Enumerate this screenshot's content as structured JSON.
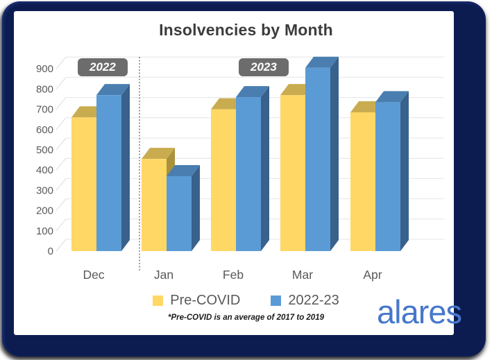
{
  "header": {
    "title": "Insolvencies by Month"
  },
  "year_badges": [
    {
      "label": "2022"
    },
    {
      "label": "2023"
    }
  ],
  "legend": {
    "items": [
      {
        "label": "Pre-COVID",
        "color": "#FFD765"
      },
      {
        "label": "2022-23",
        "color": "#5B9BD5"
      }
    ]
  },
  "footnote": "*Pre-COVID is an average of 2017 to 2019",
  "brand": "alares",
  "colors": {
    "frame_navy": "#0d1c50",
    "badge_gray": "#6c6c6c",
    "title_text": "#3c3c3c",
    "axis_text": "#595959",
    "gridline": "#e4e4e4",
    "brand_blue": "#4777cb"
  },
  "chart_data": {
    "type": "bar",
    "style": "3d-column",
    "title": "Insolvencies by Month",
    "categories": [
      "Dec",
      "Jan",
      "Feb",
      "Mar",
      "Apr"
    ],
    "year_groups": [
      {
        "label": "2022",
        "categories": [
          "Dec"
        ]
      },
      {
        "label": "2023",
        "categories": [
          "Jan",
          "Feb",
          "Mar",
          "Apr"
        ]
      }
    ],
    "series": [
      {
        "name": "Pre-COVID",
        "values": [
          660,
          455,
          700,
          770,
          685
        ],
        "color": "#FFD765",
        "color_top": "#C9AC50",
        "color_side": "#AA923C"
      },
      {
        "name": "2022-23",
        "values": [
          770,
          370,
          760,
          905,
          735
        ],
        "color": "#5B9BD5",
        "color_top": "#4A7EB0",
        "color_side": "#38618C"
      }
    ],
    "ylim": [
      0,
      900
    ],
    "ytick_step": 100,
    "grid": true,
    "legend_position": "bottom",
    "annotations": [
      "dashed vertical divider between Dec (2022) and Jan (2023)"
    ]
  }
}
